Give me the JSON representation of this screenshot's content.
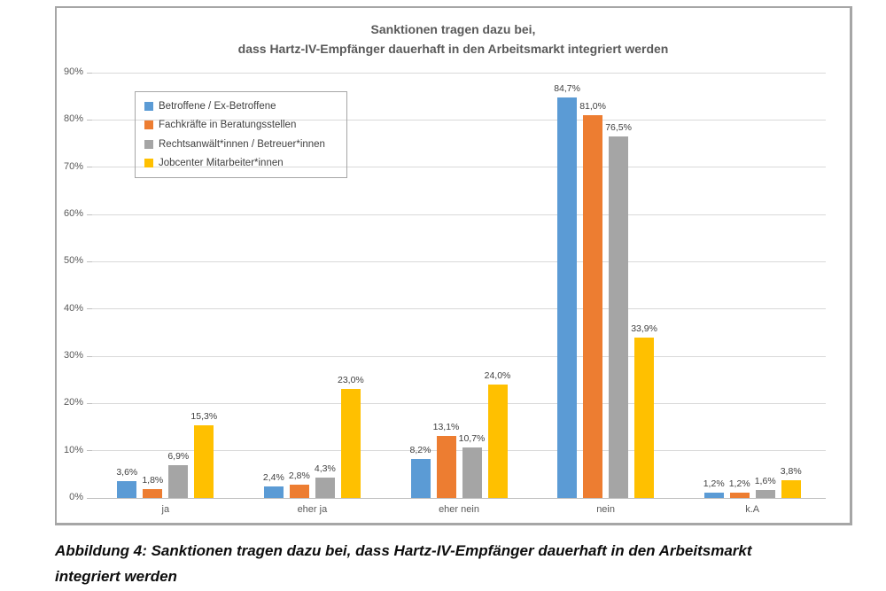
{
  "figure": {
    "title_line1": "Sanktionen tragen dazu bei,",
    "title_line2": "dass Hartz-IV-Empfänger dauerhaft in den Arbeitsmarkt integriert werden"
  },
  "caption": {
    "line1": "Abbildung 4: Sanktionen tragen dazu bei, dass Hartz-IV-Empfänger dauerhaft in den Arbeitsmarkt",
    "line2": "integriert werden"
  },
  "chart_data": {
    "type": "bar",
    "title": "Sanktionen tragen dazu bei, dass Hartz-IV-Empfänger dauerhaft in den Arbeitsmarkt integriert werden",
    "categories": [
      "ja",
      "eher ja",
      "eher nein",
      "nein",
      "k.A"
    ],
    "series": [
      {
        "name": "Betroffene / Ex-Betroffene",
        "color": "#5B9BD5",
        "values": [
          3.6,
          2.4,
          8.2,
          84.7,
          1.2
        ],
        "labels": [
          "3,6%",
          "2,4%",
          "8,2%",
          "84,7%",
          "1,2%"
        ]
      },
      {
        "name": "Fachkräfte in Beratungsstellen",
        "color": "#ED7D31",
        "values": [
          1.8,
          2.8,
          13.1,
          81.0,
          1.2
        ],
        "labels": [
          "1,8%",
          "2,8%",
          "13,1%",
          "81,0%",
          "1,2%"
        ]
      },
      {
        "name": "Rechtsanwält*innen / Betreuer*innen",
        "color": "#A5A5A5",
        "values": [
          6.9,
          4.3,
          10.7,
          76.5,
          1.6
        ],
        "labels": [
          "6,9%",
          "4,3%",
          "10,7%",
          "76,5%",
          "1,6%"
        ]
      },
      {
        "name": "Jobcenter Mitarbeiter*innen",
        "color": "#FFC000",
        "values": [
          15.3,
          23.0,
          24.0,
          33.9,
          3.8
        ],
        "labels": [
          "15,3%",
          "23,0%",
          "24,0%",
          "33,9%",
          "3,8%"
        ]
      }
    ],
    "y_ticks": [
      "0%",
      "10%",
      "20%",
      "30%",
      "40%",
      "50%",
      "60%",
      "70%",
      "80%",
      "90%"
    ],
    "ylim": [
      0,
      90
    ],
    "xlabel": "",
    "ylabel": "",
    "grid": true,
    "legend_position": "top-left-inside",
    "colors": {
      "grid": "#d9d9d9",
      "axis": "#bfbfbf",
      "title_text": "#595959",
      "tick_text": "#595959",
      "data_label_text": "#404040",
      "border": "#a6a6a6"
    }
  }
}
